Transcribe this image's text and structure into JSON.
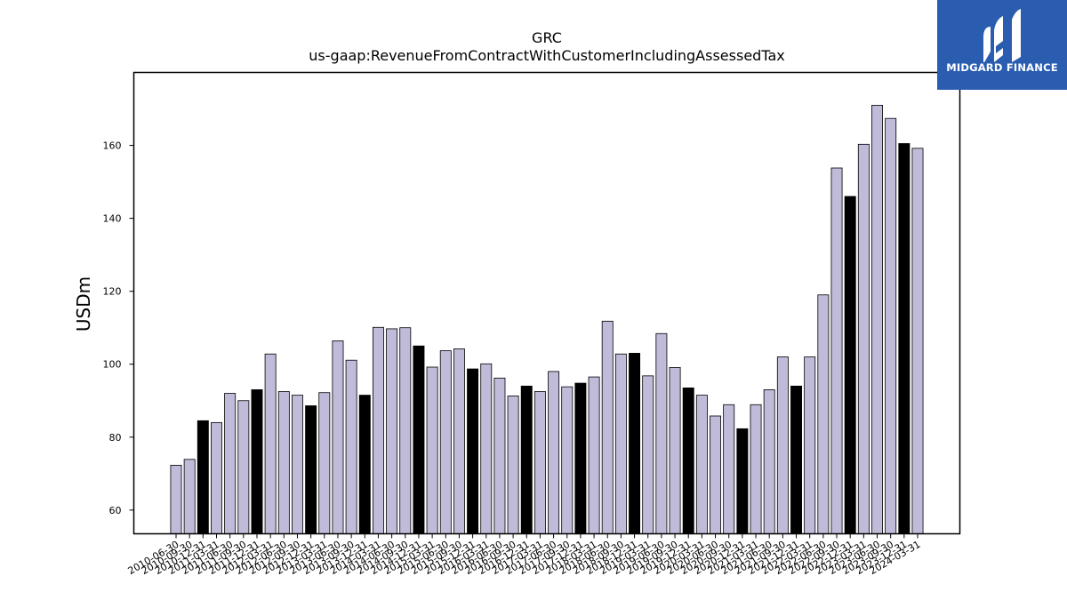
{
  "chart_data": {
    "type": "bar",
    "title": "GRC",
    "subtitle": "us-gaap:RevenueFromContractWithCustomerIncludingAssessedTax",
    "xlabel": "",
    "ylabel": "USDm",
    "ylim": [
      53.5,
      180
    ],
    "yticks": [
      60,
      80,
      100,
      120,
      140,
      160
    ],
    "grid": false,
    "colors": {
      "quarter": "#bfbbd9",
      "fiscal_year_end": "#000000",
      "edge": "#000000"
    },
    "categories": [
      "2010-06-30",
      "2010-09-30",
      "2010-12-31",
      "2011-03-31",
      "2011-06-30",
      "2011-09-30",
      "2011-12-31",
      "2012-03-31",
      "2012-06-30",
      "2012-09-30",
      "2012-12-31",
      "2013-03-31",
      "2013-06-30",
      "2013-09-30",
      "2013-12-31",
      "2014-03-31",
      "2014-06-30",
      "2014-09-30",
      "2014-12-31",
      "2015-03-31",
      "2015-06-30",
      "2015-09-30",
      "2015-12-31",
      "2016-03-31",
      "2016-06-30",
      "2016-09-30",
      "2016-12-31",
      "2017-03-31",
      "2017-06-30",
      "2017-09-30",
      "2017-12-31",
      "2018-03-31",
      "2018-06-30",
      "2018-09-30",
      "2018-12-31",
      "2019-03-31",
      "2019-06-30",
      "2019-09-30",
      "2019-12-31",
      "2020-03-31",
      "2020-06-30",
      "2020-09-30",
      "2020-12-31",
      "2021-03-31",
      "2021-06-30",
      "2021-09-30",
      "2021-12-31",
      "2022-03-31",
      "2022-06-30",
      "2022-09-30",
      "2022-12-31",
      "2023-03-31",
      "2023-06-30",
      "2023-09-30",
      "2023-12-31",
      "2024-03-31"
    ],
    "values": [
      72.3,
      73.9,
      84.5,
      84.0,
      92.0,
      90.0,
      93.0,
      102.8,
      92.5,
      91.5,
      88.6,
      92.2,
      106.4,
      101.1,
      91.5,
      110.1,
      109.7,
      110.0,
      105.0,
      99.2,
      103.7,
      104.2,
      98.7,
      100.1,
      96.2,
      91.3,
      94.0,
      92.5,
      98.0,
      93.8,
      94.8,
      96.5,
      111.8,
      102.8,
      103.0,
      96.8,
      108.4,
      99.1,
      93.5,
      91.5,
      85.8,
      88.9,
      82.3,
      88.9,
      93.0,
      102.0,
      94.0,
      102.0,
      119.0,
      153.8,
      146.0,
      160.3,
      171.0,
      167.4,
      160.5,
      159.2
    ],
    "fiscal_year_end": [
      false,
      false,
      true,
      false,
      false,
      false,
      true,
      false,
      false,
      false,
      true,
      false,
      false,
      false,
      true,
      false,
      false,
      false,
      true,
      false,
      false,
      false,
      true,
      false,
      false,
      false,
      true,
      false,
      false,
      false,
      true,
      false,
      false,
      false,
      true,
      false,
      false,
      false,
      true,
      false,
      false,
      false,
      true,
      false,
      false,
      false,
      true,
      false,
      false,
      false,
      true,
      false,
      false,
      false,
      true,
      false
    ]
  },
  "logo": {
    "text": "MIDGARD FINANCE",
    "icon": "midgard-logo-icon",
    "background": "#2a5db0"
  }
}
